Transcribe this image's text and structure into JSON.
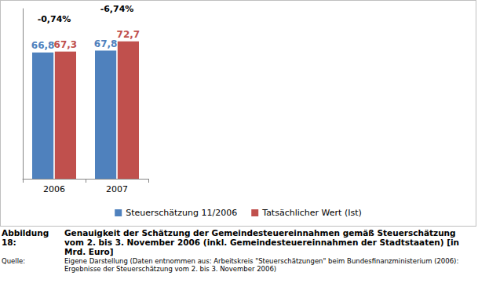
{
  "chart_data": {
    "type": "bar",
    "figure_label": "Abbildung 18:",
    "title": "Genauigkeit der Schätzung der Gemeindesteuereinnahmen gemäß Steuerschätzung vom 2. bis 3. November 2006 (inkl. Gemeindesteuereinnahmen der Stadtstaaten) [in Mrd. Euro]",
    "source_label": "Quelle:",
    "source": "Eigene Darstellung (Daten entnommen aus: Arbeitskreis \"Steuerschätzungen\" beim Bundesfinanzministerium (2006): Ergebnisse der Steuerschätzung vom 2. bis 3. November 2006)",
    "categories": [
      "2006",
      "2007"
    ],
    "series": [
      {
        "name": "Steuerschätzung 11/2006",
        "color": "#4f81bd",
        "values": [
          66.8,
          67.8
        ],
        "value_labels": [
          "66,8",
          "67,8"
        ]
      },
      {
        "name": "Tatsächlicher Wert (Ist)",
        "color": "#c0504d",
        "values": [
          67.3,
          72.7
        ],
        "value_labels": [
          "67,3",
          "72,7"
        ]
      }
    ],
    "annotations": [
      {
        "category": "2006",
        "text": "-0,74%"
      },
      {
        "category": "2007",
        "text": "-6,74%"
      }
    ],
    "ylim": [
      0,
      90
    ],
    "tick_labels": "x",
    "grid": false,
    "legend": "bottom",
    "data_labels": true
  }
}
